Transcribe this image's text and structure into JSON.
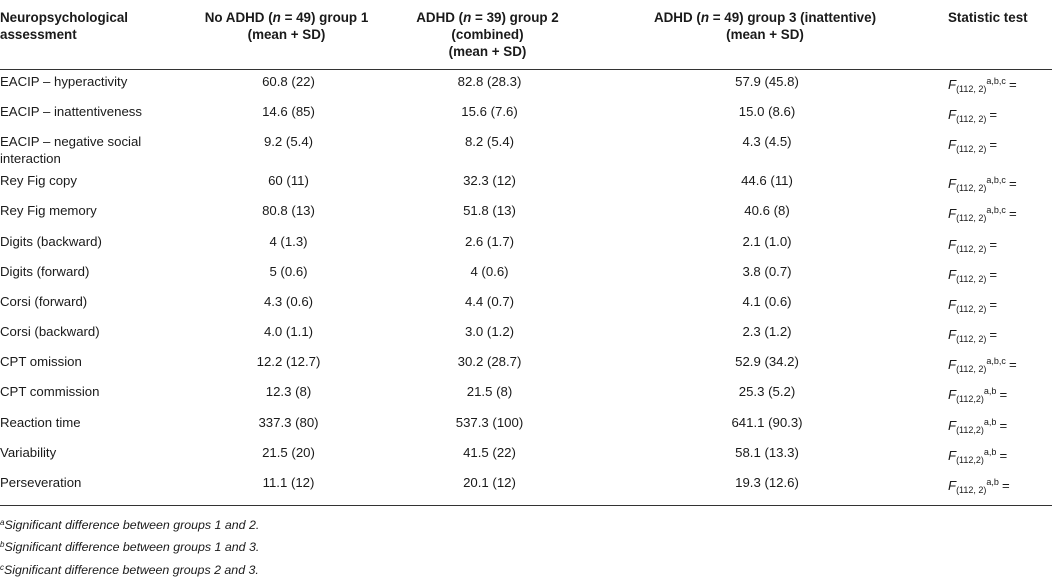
{
  "table": {
    "headers": {
      "col1": "Neuropsychological assessment",
      "col2_a": "No ADHD (",
      "col2_n": "n",
      "col2_b": " = 49) group 1",
      "col2_c": "(mean + SD)",
      "col3_a": "ADHD (",
      "col3_n": "n",
      "col3_b": " = 39) group 2 (combined)",
      "col3_c": "(mean + SD)",
      "col4_a": "ADHD (",
      "col4_n": "n",
      "col4_b": " = 49) group 3 (inattentive)",
      "col4_c": "(mean + SD)",
      "col5": "Statistic test"
    },
    "rows": [
      {
        "label": "EACIP – hyperactivity",
        "g1": "60.8 (22)",
        "g2": "82.8 (28.3)",
        "g3": "57.9 (45.8)",
        "stat_f": "F",
        "stat_sub": "(112, 2)",
        "stat_sup": "a,b,c",
        "stat_eq": "="
      },
      {
        "label": "EACIP – inattentiveness",
        "g1": "14.6 (85)",
        "g2": "15.6 (7.6)",
        "g3": "15.0 (8.6)",
        "stat_f": "F",
        "stat_sub": "(112, 2)",
        "stat_sup": "",
        "stat_eq": "="
      },
      {
        "label": "EACIP – negative social interaction",
        "g1": "9.2 (5.4)",
        "g2": "8.2 (5.4)",
        "g3": "4.3 (4.5)",
        "stat_f": "F",
        "stat_sub": "(112, 2)",
        "stat_sup": "",
        "stat_eq": "="
      },
      {
        "label": "Rey Fig copy",
        "g1": "60 (11)",
        "g2": "32.3 (12)",
        "g3": "44.6 (11)",
        "stat_f": "F",
        "stat_sub": "(112, 2)",
        "stat_sup": "a,b,c",
        "stat_eq": "="
      },
      {
        "label": "Rey Fig memory",
        "g1": "80.8 (13)",
        "g2": "51.8 (13)",
        "g3": "40.6 (8)",
        "stat_f": "F",
        "stat_sub": "(112, 2)",
        "stat_sup": "a,b,c",
        "stat_eq": "="
      },
      {
        "label": "Digits (backward)",
        "g1": "4 (1.3)",
        "g2": "2.6 (1.7)",
        "g3": "2.1 (1.0)",
        "stat_f": "F",
        "stat_sub": "(112, 2)",
        "stat_sup": "",
        "stat_eq": "="
      },
      {
        "label": "Digits (forward)",
        "g1": "5 (0.6)",
        "g2": "4 (0.6)",
        "g3": "3.8 (0.7)",
        "stat_f": "F",
        "stat_sub": "(112, 2)",
        "stat_sup": "",
        "stat_eq": "="
      },
      {
        "label": "Corsi (forward)",
        "g1": "4.3 (0.6)",
        "g2": "4.4 (0.7)",
        "g3": "4.1 (0.6)",
        "stat_f": "F",
        "stat_sub": "(112, 2)",
        "stat_sup": "",
        "stat_eq": "="
      },
      {
        "label": "Corsi (backward)",
        "g1": "4.0 (1.1)",
        "g2": "3.0 (1.2)",
        "g3": "2.3 (1.2)",
        "stat_f": "F",
        "stat_sub": "(112, 2)",
        "stat_sup": "",
        "stat_eq": "="
      },
      {
        "label": "CPT omission",
        "g1": "12.2 (12.7)",
        "g2": "30.2 (28.7)",
        "g3": "52.9 (34.2)",
        "stat_f": "F",
        "stat_sub": "(112, 2)",
        "stat_sup": "a,b,c",
        "stat_eq": "="
      },
      {
        "label": "CPT commission",
        "g1": "12.3 (8)",
        "g2": "21.5 (8)",
        "g3": "25.3 (5.2)",
        "stat_f": "F",
        "stat_sub": "(112,2)",
        "stat_sup": "a,b",
        "stat_eq": "="
      },
      {
        "label": "Reaction time",
        "g1": "337.3 (80)",
        "g2": "537.3 (100)",
        "g3": "641.1 (90.3)",
        "stat_f": "F",
        "stat_sub": "(112,2)",
        "stat_sup": "a,b",
        "stat_eq": "="
      },
      {
        "label": "Variability",
        "g1": "21.5 (20)",
        "g2": "41.5 (22)",
        "g3": "58.1 (13.3)",
        "stat_f": "F",
        "stat_sub": "(112,2)",
        "stat_sup": "a,b",
        "stat_eq": "="
      },
      {
        "label": "Perseveration",
        "g1": "11.1 (12)",
        "g2": "20.1 (12)",
        "g3": "19.3 (12.6)",
        "stat_f": "F",
        "stat_sub": "(112, 2)",
        "stat_sup": "a,b",
        "stat_eq": "="
      }
    ]
  },
  "footnotes": [
    {
      "mark": "a",
      "text": "Significant difference between groups 1 and 2."
    },
    {
      "mark": "b",
      "text": "Significant difference between groups 1 and 3."
    },
    {
      "mark": "c",
      "text": "Significant difference between groups 2 and 3."
    }
  ]
}
